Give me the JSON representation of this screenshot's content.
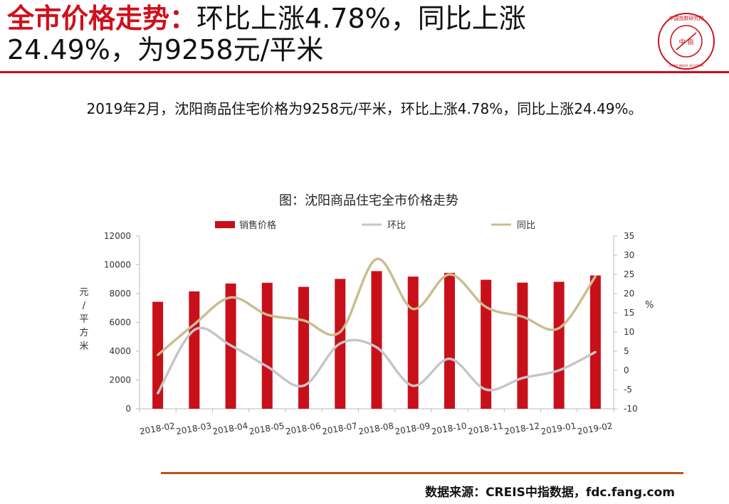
{
  "title": {
    "highlight": "全市价格走势：",
    "line1": "环比上涨4.78%，同比上涨",
    "line2": "24.49%，为9258元/平米"
  },
  "summary": "2019年2月，沈阳商品住宅价格为9258元/平米，环比上涨4.78%，同比上涨24.49%。",
  "logo": {
    "center_text": "中 指",
    "ring_text": "中国指数研究院",
    "sub_text": "CHINA INDEX ACADEMY"
  },
  "source": "数据来源：CREIS中指数据，fdc.fang.com",
  "colors": {
    "accent_red": "#c8101a",
    "bar": "#c8101a",
    "hb_line": "#c6c6c6",
    "tb_line": "#cbbd91",
    "footer_rule": "#b5541e"
  },
  "chart_data": {
    "type": "bar",
    "title": "图：沈阳商品住宅全市价格走势",
    "categories": [
      "2018-02",
      "2018-03",
      "2018-04",
      "2018-05",
      "2018-06",
      "2018-07",
      "2018-08",
      "2018-09",
      "2018-10",
      "2018-11",
      "2018-12",
      "2019-01",
      "2019-02"
    ],
    "series": [
      {
        "name": "销售价格",
        "type": "bar",
        "axis": "left",
        "values": [
          7430,
          8150,
          8700,
          8750,
          8470,
          9020,
          9560,
          9180,
          9440,
          8960,
          8760,
          8820,
          9258
        ]
      },
      {
        "name": "环比",
        "type": "line",
        "axis": "right",
        "values": [
          -6,
          10.5,
          6.5,
          1,
          -4,
          7,
          6,
          -4,
          3,
          -5,
          -2,
          0,
          4.78
        ]
      },
      {
        "name": "同比",
        "type": "line",
        "axis": "right",
        "values": [
          4,
          12,
          19,
          14.5,
          13,
          10,
          29,
          16,
          25,
          16.5,
          14,
          11,
          24.49
        ]
      }
    ],
    "ylabel_left": "元/平方米",
    "ylabel_right": "%",
    "ylim_left": [
      0,
      12000
    ],
    "yticks_left": [
      0,
      2000,
      4000,
      6000,
      8000,
      10000,
      12000
    ],
    "ylim_right": [
      -10,
      35
    ],
    "yticks_right": [
      -10,
      -5,
      0,
      5,
      10,
      15,
      20,
      25,
      30,
      35
    ],
    "legend": "top",
    "grid": false
  }
}
